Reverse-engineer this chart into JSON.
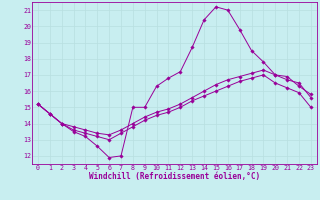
{
  "xlabel": "Windchill (Refroidissement éolien,°C)",
  "background_color": "#c8eef0",
  "line_color": "#990099",
  "grid_color": "#b8dfe0",
  "xlim": [
    -0.5,
    23.5
  ],
  "ylim": [
    11.5,
    21.5
  ],
  "xticks": [
    0,
    1,
    2,
    3,
    4,
    5,
    6,
    7,
    8,
    9,
    10,
    11,
    12,
    13,
    14,
    15,
    16,
    17,
    18,
    19,
    20,
    21,
    22,
    23
  ],
  "yticks": [
    12,
    13,
    14,
    15,
    16,
    17,
    18,
    19,
    20,
    21
  ],
  "line1_x": [
    0,
    1,
    2,
    3,
    4,
    5,
    6,
    7,
    8,
    9,
    10,
    11,
    12,
    13,
    14,
    15,
    16,
    17,
    18,
    19,
    20,
    21,
    22,
    23
  ],
  "line1_y": [
    15.2,
    14.6,
    14.0,
    13.5,
    13.2,
    12.6,
    11.9,
    12.0,
    15.0,
    15.0,
    16.3,
    16.8,
    17.2,
    18.7,
    20.4,
    21.2,
    21.0,
    19.8,
    18.5,
    17.8,
    17.0,
    16.9,
    16.3,
    15.8
  ],
  "line2_x": [
    0,
    1,
    2,
    3,
    4,
    5,
    6,
    7,
    8,
    9,
    10,
    11,
    12,
    13,
    14,
    15,
    16,
    17,
    18,
    19,
    20,
    21,
    22,
    23
  ],
  "line2_y": [
    15.2,
    14.6,
    14.0,
    13.8,
    13.6,
    13.4,
    13.3,
    13.6,
    14.0,
    14.4,
    14.7,
    14.9,
    15.2,
    15.6,
    16.0,
    16.4,
    16.7,
    16.9,
    17.1,
    17.3,
    17.0,
    16.7,
    16.5,
    15.6
  ],
  "line3_x": [
    0,
    1,
    2,
    3,
    4,
    5,
    6,
    7,
    8,
    9,
    10,
    11,
    12,
    13,
    14,
    15,
    16,
    17,
    18,
    19,
    20,
    21,
    22,
    23
  ],
  "line3_y": [
    15.2,
    14.6,
    14.0,
    13.6,
    13.4,
    13.2,
    13.0,
    13.4,
    13.8,
    14.2,
    14.5,
    14.7,
    15.0,
    15.4,
    15.7,
    16.0,
    16.3,
    16.6,
    16.8,
    17.0,
    16.5,
    16.2,
    15.9,
    15.0
  ],
  "marker": "D",
  "markersize": 1.8,
  "linewidth": 0.7,
  "tick_fontsize": 4.8,
  "label_fontsize": 5.5
}
